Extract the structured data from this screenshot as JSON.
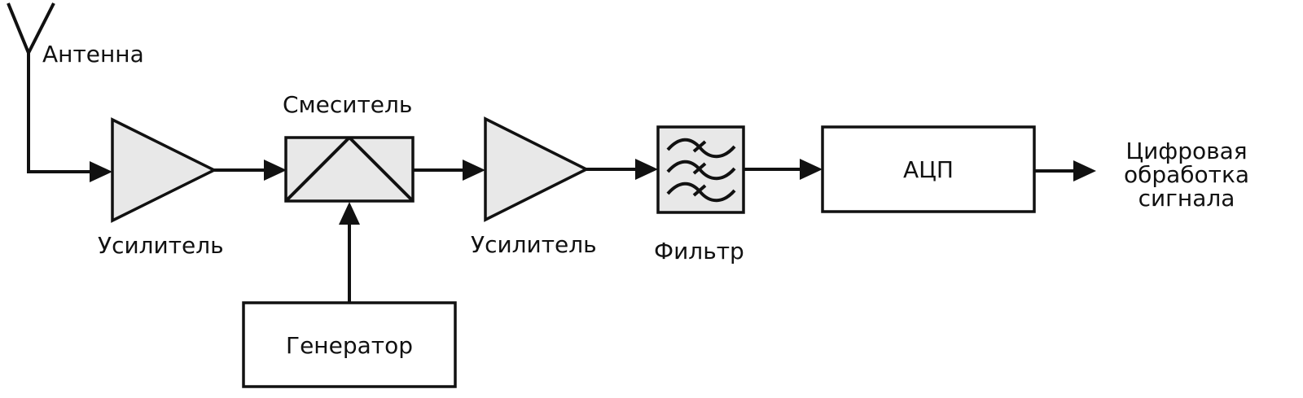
{
  "labels": {
    "antenna": "Антенна",
    "amplifier1": "Усилитель",
    "mixer": "Смеситель",
    "amplifier2": "Усилитель",
    "filter": "Фильтр",
    "adc": "АЦП",
    "generator": "Генератор",
    "output_line1": "Цифровая",
    "output_line2": "обработка",
    "output_line3": "сигнала"
  },
  "colors": {
    "stroke": "#111111",
    "block_fill": "#e8e8e8",
    "box_fill": "#ffffff"
  }
}
